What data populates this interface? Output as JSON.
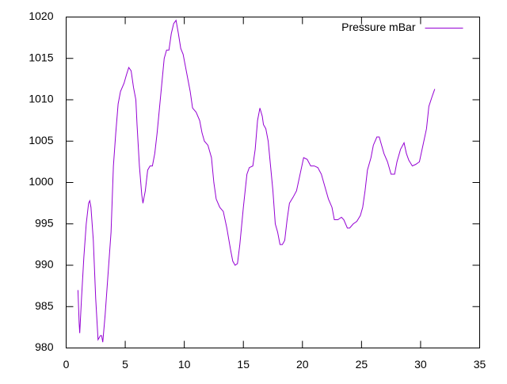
{
  "chart_data": {
    "type": "line",
    "x": [
      1.0,
      1.1,
      1.15,
      1.3,
      1.5,
      1.7,
      1.9,
      2.0,
      2.1,
      2.3,
      2.5,
      2.7,
      2.9,
      3.0,
      3.1,
      3.3,
      3.5,
      3.8,
      4.0,
      4.2,
      4.4,
      4.6,
      4.9,
      5.1,
      5.3,
      5.5,
      5.7,
      5.9,
      6.0,
      6.2,
      6.4,
      6.5,
      6.7,
      6.9,
      7.1,
      7.3,
      7.5,
      7.7,
      7.9,
      8.1,
      8.3,
      8.5,
      8.7,
      8.9,
      9.1,
      9.3,
      9.5,
      9.7,
      9.9,
      10.1,
      10.3,
      10.5,
      10.7,
      11.0,
      11.3,
      11.5,
      11.7,
      12.0,
      12.3,
      12.5,
      12.7,
      13.0,
      13.3,
      13.6,
      13.9,
      14.1,
      14.3,
      14.5,
      14.7,
      15.0,
      15.3,
      15.5,
      15.8,
      16.0,
      16.2,
      16.4,
      16.6,
      16.7,
      16.9,
      17.1,
      17.3,
      17.5,
      17.7,
      17.9,
      18.1,
      18.3,
      18.5,
      18.7,
      18.9,
      19.2,
      19.5,
      19.8,
      20.1,
      20.4,
      20.7,
      21.0,
      21.3,
      21.6,
      21.9,
      22.2,
      22.5,
      22.7,
      23.0,
      23.3,
      23.5,
      23.8,
      24.0,
      24.3,
      24.6,
      24.9,
      25.1,
      25.3,
      25.5,
      25.8,
      26.0,
      26.3,
      26.5,
      26.7,
      26.9,
      27.2,
      27.5,
      27.8,
      28.0,
      28.3,
      28.6,
      28.8,
      29.0,
      29.3,
      29.6,
      29.9,
      30.2,
      30.5,
      30.7,
      31.0,
      31.2
    ],
    "series": [
      {
        "name": "Pressure mBar",
        "color": "#9400d3",
        "values": [
          987,
          983,
          981.8,
          986,
          991,
          995,
          997.5,
          997.8,
          997,
          993,
          986,
          981,
          981.5,
          981.5,
          980.7,
          984,
          988,
          994,
          1002,
          1006,
          1009.5,
          1011,
          1012,
          1013,
          1013.9,
          1013.5,
          1011.5,
          1010,
          1007,
          1002,
          998.5,
          997.5,
          999,
          1001.5,
          1002,
          1002,
          1003.5,
          1006,
          1009,
          1012,
          1015,
          1016,
          1016,
          1018,
          1019.2,
          1019.6,
          1018,
          1016.2,
          1015.5,
          1014,
          1012.5,
          1011,
          1009,
          1008.5,
          1007.5,
          1006,
          1005,
          1004.5,
          1003,
          1000,
          998,
          997,
          996.5,
          994.5,
          992,
          990.5,
          990,
          990.2,
          992.5,
          997,
          1001,
          1001.8,
          1002,
          1004,
          1007.5,
          1009,
          1008,
          1007,
          1006.5,
          1005,
          1002,
          999,
          995,
          994,
          992.5,
          992.5,
          993,
          995.5,
          997.5,
          998.2,
          999,
          1001,
          1003,
          1002.8,
          1002,
          1002,
          1001.8,
          1001,
          999.5,
          998,
          997,
          995.5,
          995.5,
          995.8,
          995.5,
          994.5,
          994.5,
          995,
          995.3,
          996,
          997,
          999,
          1001.5,
          1003,
          1004.5,
          1005.5,
          1005.5,
          1004.5,
          1003.5,
          1002.5,
          1001,
          1001,
          1002.5,
          1004,
          1004.8,
          1003.5,
          1002.7,
          1002,
          1002.2,
          1002.5,
          1004.5,
          1006.5,
          1009.2,
          1010.5,
          1011.3
        ]
      }
    ],
    "xlim": [
      0,
      35
    ],
    "xticks": [
      0,
      5,
      10,
      15,
      20,
      25,
      30,
      35
    ],
    "ylim": [
      980,
      1020
    ],
    "yticks": [
      980,
      985,
      990,
      995,
      1000,
      1005,
      1010,
      1015,
      1020
    ],
    "grid": false,
    "legend": "top-right"
  }
}
